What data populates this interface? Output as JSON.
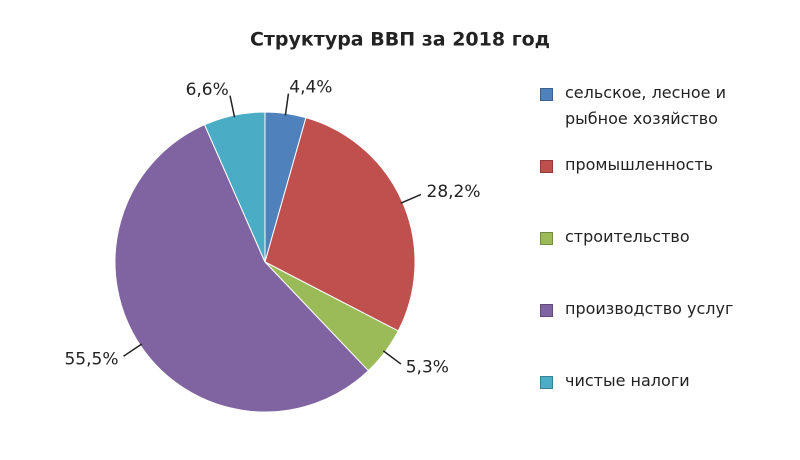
{
  "chart_data": {
    "type": "pie",
    "title": "Структура ВВП за 2018 год",
    "categories": [
      "сельское, лесное и рыбное хозяйство",
      "промышленность",
      "строительство",
      "производство услуг",
      "чистые налоги"
    ],
    "values": [
      4.4,
      28.2,
      5.3,
      55.5,
      6.6
    ],
    "value_labels": [
      "4,4%",
      "28,2%",
      "5,3%",
      "55,5%",
      "6,6%"
    ],
    "colors": [
      "#4f81bd",
      "#c0504d",
      "#9bbb59",
      "#8064a2",
      "#4bacc6"
    ],
    "legend": "right"
  }
}
